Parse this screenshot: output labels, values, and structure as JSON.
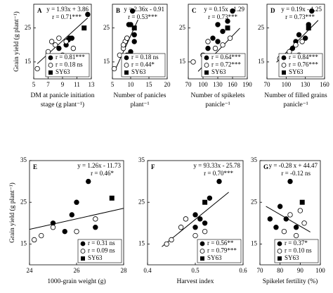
{
  "chart_data": [
    {
      "type": "scatter",
      "label": "A",
      "equation": "y = 1.93x + 3.86",
      "r_text": "r = 0.71***",
      "fit": {
        "slope": 1.93,
        "intercept": 3.86,
        "x_range": [
          5.5,
          12.5
        ]
      },
      "ylabel": "Grain yield (g plant⁻¹)",
      "xlabel": [
        "DM at panicle initiation",
        "stage (g plant⁻¹)"
      ],
      "xlim": [
        5,
        13
      ],
      "xticks": [
        5,
        7,
        9,
        11,
        13
      ],
      "ylim": [
        10,
        32
      ],
      "yticks": [
        15,
        25
      ],
      "series": [
        {
          "name": "r = 0.81***",
          "marker": "filled",
          "x": [
            9.5,
            10,
            9.8,
            12.5,
            10.3,
            8.5
          ],
          "values": [
            20,
            22,
            21.5,
            29,
            22,
            19
          ]
        },
        {
          "name": "r = 0.18 ns",
          "marker": "open",
          "x": [
            7,
            7.5,
            8,
            8.5,
            9,
            9.5,
            5.5,
            10.5
          ],
          "values": [
            18,
            21,
            20,
            22,
            17,
            21,
            13,
            19
          ]
        },
        {
          "name": "SY63",
          "marker": "square",
          "x": [
            12
          ],
          "values": [
            25
          ]
        }
      ]
    },
    {
      "type": "scatter",
      "label": "B",
      "equation": "y = 2.36x - 0.91",
      "r_text": "r = 0.53***",
      "fit": {
        "slope": 2.36,
        "intercept": -0.91,
        "x_range": [
          6,
          12
        ]
      },
      "xlabel": [
        "Number of panicles",
        "plant⁻¹"
      ],
      "xlim": [
        5,
        20
      ],
      "xticks": [
        5,
        10,
        15,
        20
      ],
      "ylim": [
        10,
        32
      ],
      "yticks": [
        15,
        25
      ],
      "series": [
        {
          "name": "r = 0.18 ns",
          "marker": "filled",
          "x": [
            9,
            9.5,
            10,
            10.5,
            11,
            9,
            10,
            11
          ],
          "values": [
            22,
            26,
            26,
            30,
            21,
            17,
            18,
            23
          ]
        },
        {
          "name": "r = 0.44*",
          "marker": "open",
          "x": [
            5.5,
            7,
            8,
            8.5,
            9,
            8
          ],
          "values": [
            13,
            17,
            19,
            21,
            22,
            20
          ]
        },
        {
          "name": "SY63",
          "marker": "square",
          "x": [
            11
          ],
          "values": [
            25
          ]
        }
      ]
    },
    {
      "type": "scatter",
      "label": "C",
      "equation": "y = 0.15x - 1.29",
      "r_text": "r = 0.73***",
      "fit": {
        "slope": 0.15,
        "intercept": -1.29,
        "x_range": [
          90,
          175
        ]
      },
      "xlabel": [
        "Number of spikelets",
        "panicle⁻¹"
      ],
      "xlim": [
        70,
        190
      ],
      "xticks": [
        70,
        100,
        130,
        160,
        190
      ],
      "ylim": [
        10,
        32
      ],
      "yticks": [
        15,
        25
      ],
      "series": [
        {
          "name": "r = 0.64***",
          "marker": "filled",
          "x": [
            120,
            130,
            150,
            140,
            160,
            130,
            110
          ],
          "values": [
            22,
            26,
            27,
            24,
            30,
            21,
            19
          ]
        },
        {
          "name": "r = 0.72***",
          "marker": "open",
          "x": [
            80,
            100,
            110,
            125,
            140,
            155
          ],
          "values": [
            15,
            17,
            21,
            19,
            20,
            22
          ]
        },
        {
          "name": "SY63",
          "marker": "square",
          "x": [
            150
          ],
          "values": [
            25
          ]
        }
      ]
    },
    {
      "type": "scatter",
      "label": "D",
      "equation": "y = 0.19x - 1.25",
      "r_text": "r = 0.73***",
      "fit": {
        "slope": 0.19,
        "intercept": -1.25,
        "x_range": [
          85,
          150
        ]
      },
      "xlabel": [
        "Number of filled grains",
        "panicle⁻¹"
      ],
      "xlim": [
        70,
        160
      ],
      "xticks": [
        70,
        100,
        130,
        160
      ],
      "ylim": [
        10,
        32
      ],
      "yticks": [
        15,
        25
      ],
      "series": [
        {
          "name": "r = 0.84***",
          "marker": "filled",
          "x": [
            115,
            120,
            130,
            135,
            140,
            110
          ],
          "values": [
            21,
            23,
            22,
            26,
            30,
            19
          ]
        },
        {
          "name": "r = 0.76***",
          "marker": "open",
          "x": [
            90,
            105,
            115,
            120,
            125,
            110
          ],
          "values": [
            16,
            18,
            20,
            17,
            21,
            16
          ]
        },
        {
          "name": "SY63",
          "marker": "square",
          "x": [
            135
          ],
          "values": [
            25
          ]
        }
      ]
    },
    {
      "type": "scatter",
      "label": "E",
      "equation": "y = 1.26x - 11.73",
      "r_text": "r = 0.46*",
      "fit": {
        "slope": 1.26,
        "intercept": -11.73,
        "x_range": [
          24,
          28
        ]
      },
      "ylabel": "Grain yield (g plant⁻¹)",
      "xlabel": [
        "1000-grain weight (g)"
      ],
      "xlim": [
        24,
        28
      ],
      "xticks": [
        24,
        26,
        28
      ],
      "ylim": [
        10,
        35
      ],
      "yticks": [
        15,
        25,
        35
      ],
      "series": [
        {
          "name": "r = 0.31 ns",
          "marker": "filled",
          "x": [
            25,
            25.8,
            26.5,
            26,
            26.8,
            25.5
          ],
          "values": [
            20,
            22,
            30,
            25,
            19,
            18
          ]
        },
        {
          "name": "r = 0.09 ns",
          "marker": "open",
          "x": [
            24.2,
            24.5,
            25,
            26,
            26.8,
            27.2
          ],
          "values": [
            16,
            17,
            19,
            18,
            21,
            13
          ]
        },
        {
          "name": "SY63",
          "marker": "square",
          "x": [
            27.5
          ],
          "values": [
            26
          ]
        }
      ]
    },
    {
      "type": "scatter",
      "label": "F",
      "equation": "y = 93.33x - 25.78",
      "r_text": "r = 0.70***",
      "fit": {
        "slope": 93.33,
        "intercept": -25.78,
        "x_range": [
          0.43,
          0.57
        ]
      },
      "xlabel": [
        "Harvest index"
      ],
      "xlim": [
        0.4,
        0.6
      ],
      "xticks": [
        0.4,
        0.5,
        0.6
      ],
      "ylim": [
        10,
        35
      ],
      "yticks": [
        15,
        25,
        35
      ],
      "series": [
        {
          "name": "r = 0.56**",
          "marker": "filled",
          "x": [
            0.5,
            0.52,
            0.53,
            0.55,
            0.5,
            0.51
          ],
          "values": [
            22,
            20,
            26,
            30,
            19,
            21
          ]
        },
        {
          "name": "r = 0.79***",
          "marker": "open",
          "x": [
            0.44,
            0.45,
            0.47,
            0.48,
            0.5,
            0.52
          ],
          "values": [
            15,
            16,
            19,
            21,
            17,
            18
          ]
        },
        {
          "name": "SY63",
          "marker": "square",
          "x": [
            0.52
          ],
          "values": [
            25
          ]
        }
      ]
    },
    {
      "type": "scatter",
      "label": "G",
      "equation": "y = -0.28 x + 44.47",
      "r_text": "r = -0.12 ns",
      "fit": {
        "slope": -0.28,
        "intercept": 44.47,
        "x_range": [
          73,
          95
        ]
      },
      "xlabel": [
        "Spikelet fertility (%)"
      ],
      "xlim": [
        70,
        100
      ],
      "xticks": [
        70,
        80,
        90,
        100
      ],
      "ylim": [
        10,
        35
      ],
      "yticks": [
        15,
        25,
        35
      ],
      "series": [
        {
          "name": "r = 0.37*",
          "marker": "filled",
          "x": [
            75,
            80,
            83,
            85,
            88,
            78
          ],
          "values": [
            21,
            24,
            21,
            30,
            19,
            19
          ]
        },
        {
          "name": "r = 0.10 ns",
          "marker": "open",
          "x": [
            82,
            85,
            87,
            88,
            90,
            92
          ],
          "values": [
            18,
            22,
            13,
            17,
            23,
            20
          ]
        },
        {
          "name": "SY63",
          "marker": "square",
          "x": [
            91
          ],
          "values": [
            25
          ]
        }
      ]
    }
  ]
}
